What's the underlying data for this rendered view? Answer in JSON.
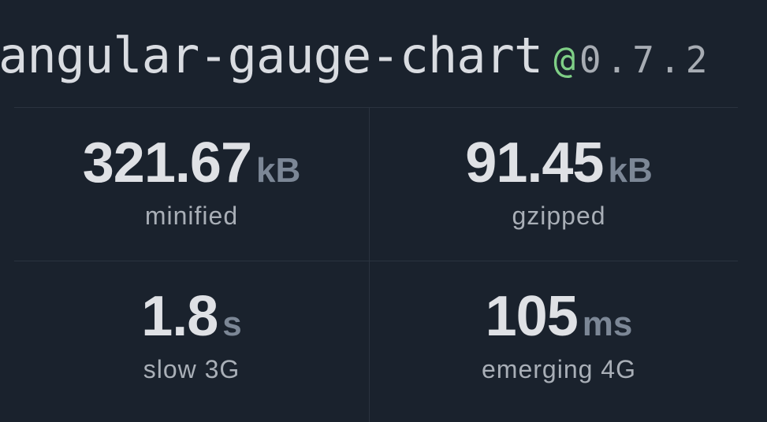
{
  "package": {
    "name": "angular-gauge-chart",
    "at": "@",
    "version": "0.7.2"
  },
  "stats": [
    {
      "value": "321.67",
      "unit": "kB",
      "label": "minified"
    },
    {
      "value": "91.45",
      "unit": "kB",
      "label": "gzipped"
    },
    {
      "value": "1.8",
      "unit": "s",
      "label": "slow 3G"
    },
    {
      "value": "105",
      "unit": "ms",
      "label": "emerging 4G"
    }
  ],
  "colors": {
    "background": "#1a222d",
    "at_sign": "#7fcf86",
    "unit": "#7c8796"
  }
}
